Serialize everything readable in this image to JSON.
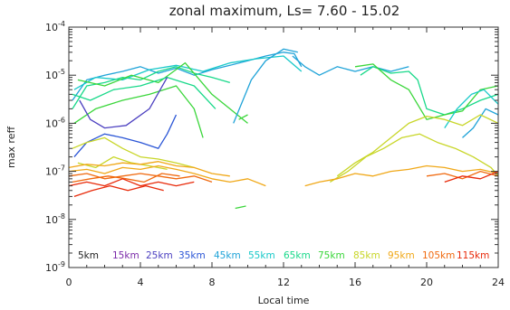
{
  "chart_data": {
    "type": "line",
    "title": "zonal maximum, Ls=  7.60 -  15.02",
    "xlabel": "Local time",
    "ylabel": "max reff",
    "xlim": [
      0,
      24
    ],
    "ylim": [
      1e-09,
      0.0001
    ],
    "yscale": "log",
    "grid": false,
    "legend_placement": "bottom-inside",
    "x_ticks": [
      0,
      4,
      8,
      12,
      16,
      20,
      24
    ],
    "x_tick_labels": [
      "0",
      "4",
      "8",
      "12",
      "16",
      "20",
      "24"
    ],
    "y_ticks": [
      1e-09,
      1e-08,
      1e-07,
      1e-06,
      1e-05,
      0.0001
    ],
    "y_tick_labels": [
      {
        "base": "10",
        "exp": "-9"
      },
      {
        "base": "10",
        "exp": "-8"
      },
      {
        "base": "10",
        "exp": "-7"
      },
      {
        "base": "10",
        "exp": "-6"
      },
      {
        "base": "10",
        "exp": "-5"
      },
      {
        "base": "10",
        "exp": "-4"
      }
    ],
    "legend": [
      {
        "label": "5km",
        "color": "#222222"
      },
      {
        "label": "15km",
        "color": "#7a2aa8"
      },
      {
        "label": "25km",
        "color": "#4b3fc0"
      },
      {
        "label": "35km",
        "color": "#2a55d6"
      },
      {
        "label": "45km",
        "color": "#1fa3d8"
      },
      {
        "label": "55km",
        "color": "#18c9c9"
      },
      {
        "label": "65km",
        "color": "#19d98a"
      },
      {
        "label": "75km",
        "color": "#3ad63a"
      },
      {
        "label": "85km",
        "color": "#c8d628"
      },
      {
        "label": "95km",
        "color": "#f0a818"
      },
      {
        "label": "105km",
        "color": "#f06a10"
      },
      {
        "label": "115km",
        "color": "#e82a0a"
      }
    ],
    "series": [
      {
        "color": "#1fa3d8",
        "points": [
          [
            0.2,
            3e-06
          ],
          [
            1,
            8e-06
          ],
          [
            2,
            1e-05
          ],
          [
            3,
            1.2e-05
          ],
          [
            4,
            1.5e-05
          ],
          [
            5,
            1.1e-05
          ],
          [
            6,
            1.4e-05
          ],
          [
            7,
            1e-05
          ],
          [
            8,
            1.3e-05
          ],
          [
            9,
            1.6e-05
          ],
          [
            10,
            2e-05
          ],
          [
            11,
            2.5e-05
          ],
          [
            12,
            3e-05
          ],
          [
            12.6,
            2.8e-05
          ],
          [
            13,
            1.5e-05
          ]
        ]
      },
      {
        "color": "#18c9c9",
        "points": [
          [
            0.3,
            5e-06
          ],
          [
            1.5,
            9e-06
          ],
          [
            3,
            8e-06
          ],
          [
            4.5,
            1.3e-05
          ],
          [
            6,
            1.6e-05
          ],
          [
            7.5,
            1.2e-05
          ],
          [
            9,
            1.8e-05
          ],
          [
            10.5,
            2.2e-05
          ],
          [
            12,
            2.5e-05
          ],
          [
            13,
            1.2e-05
          ]
        ]
      },
      {
        "color": "#19d98a",
        "points": [
          [
            0.2,
            2e-06
          ],
          [
            1,
            6e-06
          ],
          [
            2,
            7e-06
          ],
          [
            3,
            9e-06
          ],
          [
            4,
            8e-06
          ],
          [
            5,
            1.2e-05
          ],
          [
            6,
            1.5e-05
          ],
          [
            7,
            1.1e-05
          ],
          [
            8,
            9e-06
          ],
          [
            9,
            7e-06
          ]
        ]
      },
      {
        "color": "#3ad63a",
        "points": [
          [
            0.3,
            1e-06
          ],
          [
            1.5,
            2e-06
          ],
          [
            3,
            3e-06
          ],
          [
            4.5,
            4e-06
          ],
          [
            6,
            6e-06
          ],
          [
            7,
            2e-06
          ],
          [
            7.5,
            5e-07
          ]
        ]
      },
      {
        "color": "#3ad63a",
        "points": [
          [
            0.5,
            8e-06
          ],
          [
            2,
            6e-06
          ],
          [
            3.5,
            1e-05
          ],
          [
            5,
            7e-06
          ],
          [
            6.5,
            1.8e-05
          ],
          [
            8,
            4e-06
          ],
          [
            9,
            2e-06
          ],
          [
            10,
            1e-06
          ]
        ]
      },
      {
        "color": "#19d98a",
        "points": [
          [
            0.2,
            4e-06
          ],
          [
            1.2,
            3e-06
          ],
          [
            2.5,
            5e-06
          ],
          [
            4,
            6e-06
          ],
          [
            5.5,
            9e-06
          ],
          [
            7,
            6e-06
          ],
          [
            8.2,
            2e-06
          ]
        ]
      },
      {
        "color": "#2a55d6",
        "points": [
          [
            0.3,
            2e-07
          ],
          [
            1,
            4e-07
          ],
          [
            2,
            6e-07
          ],
          [
            3,
            5e-07
          ],
          [
            4,
            4e-07
          ],
          [
            5,
            3e-07
          ],
          [
            5.5,
            6e-07
          ],
          [
            6,
            1.5e-06
          ]
        ]
      },
      {
        "color": "#4b3fc0",
        "points": [
          [
            0.6,
            3e-06
          ],
          [
            1.2,
            1.2e-06
          ],
          [
            2,
            8e-07
          ],
          [
            3.2,
            9e-07
          ],
          [
            4.5,
            2e-06
          ],
          [
            5.5,
            9e-06
          ]
        ]
      },
      {
        "color": "#1fa3d8",
        "points": [
          [
            9.2,
            1e-06
          ],
          [
            10.2,
            8e-06
          ],
          [
            11,
            2e-05
          ],
          [
            12,
            3.5e-05
          ],
          [
            12.8,
            3e-05
          ]
        ]
      },
      {
        "color": "#1fa3d8",
        "points": [
          [
            12.5,
            2.5e-05
          ],
          [
            13.2,
            1.5e-05
          ],
          [
            14,
            1e-05
          ],
          [
            15,
            1.5e-05
          ],
          [
            16,
            1.2e-05
          ],
          [
            17,
            1.5e-05
          ],
          [
            18,
            1.2e-05
          ],
          [
            19,
            1.5e-05
          ]
        ]
      },
      {
        "color": "#3ad63a",
        "points": [
          [
            9.5,
            1.2e-06
          ],
          [
            10,
            1.5e-06
          ]
        ]
      },
      {
        "color": "#3ad63a",
        "points": [
          [
            9.3,
            1.7e-08
          ],
          [
            9.9,
            1.9e-08
          ]
        ]
      },
      {
        "color": "#19d98a",
        "points": [
          [
            16.3,
            1e-05
          ],
          [
            17,
            1.5e-05
          ],
          [
            18,
            1.1e-05
          ],
          [
            19,
            1.2e-05
          ],
          [
            19.5,
            8e-06
          ],
          [
            20,
            2e-06
          ],
          [
            21,
            1.5e-06
          ],
          [
            22,
            2e-06
          ],
          [
            23,
            3e-06
          ],
          [
            24,
            4e-06
          ]
        ]
      },
      {
        "color": "#3ad63a",
        "points": [
          [
            16,
            1.5e-05
          ],
          [
            17,
            1.7e-05
          ],
          [
            18,
            8e-06
          ],
          [
            19,
            5e-06
          ],
          [
            20,
            1.2e-06
          ],
          [
            21,
            1.5e-06
          ],
          [
            22,
            1.8e-06
          ],
          [
            23,
            5e-06
          ],
          [
            24,
            6e-06
          ]
        ]
      },
      {
        "color": "#18c9c9",
        "points": [
          [
            21,
            8e-07
          ],
          [
            21.7,
            2e-06
          ],
          [
            22.5,
            4e-06
          ],
          [
            23.2,
            5e-06
          ],
          [
            24,
            2.5e-06
          ]
        ]
      },
      {
        "color": "#1fa3d8",
        "points": [
          [
            22,
            5e-07
          ],
          [
            22.6,
            8e-07
          ],
          [
            23.3,
            2e-06
          ],
          [
            24,
            1.5e-06
          ]
        ]
      },
      {
        "color": "#c8d628",
        "points": [
          [
            0.2,
            3e-07
          ],
          [
            1,
            4e-07
          ],
          [
            2,
            5e-07
          ],
          [
            3,
            3e-07
          ],
          [
            4,
            2e-07
          ],
          [
            5,
            1.8e-07
          ],
          [
            6,
            1.5e-07
          ],
          [
            7,
            1.2e-07
          ]
        ]
      },
      {
        "color": "#c8d628",
        "points": [
          [
            0.5,
            1.5e-07
          ],
          [
            1.5,
            1.2e-07
          ],
          [
            2.5,
            2e-07
          ],
          [
            3.5,
            1.5e-07
          ],
          [
            4.5,
            1.3e-07
          ],
          [
            5.5,
            1.1e-07
          ]
        ]
      },
      {
        "color": "#c8d628",
        "points": [
          [
            15,
            8e-08
          ],
          [
            16,
            1.5e-07
          ],
          [
            17,
            2.5e-07
          ],
          [
            18,
            5e-07
          ],
          [
            19,
            1e-06
          ],
          [
            20,
            1.4e-06
          ],
          [
            21,
            1.2e-06
          ],
          [
            22,
            9e-07
          ],
          [
            23,
            1.5e-06
          ],
          [
            24,
            1e-06
          ]
        ]
      },
      {
        "color": "#c8d628",
        "points": [
          [
            14.6,
            6e-08
          ],
          [
            15.6,
            1e-07
          ],
          [
            16.6,
            2e-07
          ],
          [
            17.6,
            3e-07
          ],
          [
            18.6,
            5e-07
          ],
          [
            19.6,
            6e-07
          ],
          [
            20.6,
            4e-07
          ],
          [
            21.6,
            3e-07
          ],
          [
            22.6,
            2e-07
          ],
          [
            23.6,
            1.2e-07
          ],
          [
            24,
            8e-08
          ]
        ]
      },
      {
        "color": "#f0a818",
        "points": [
          [
            0,
            1e-07
          ],
          [
            1,
            1.1e-07
          ],
          [
            2,
            9e-08
          ],
          [
            3,
            1.2e-07
          ],
          [
            4,
            1.1e-07
          ],
          [
            5,
            1.3e-07
          ],
          [
            6,
            1.1e-07
          ],
          [
            7,
            9e-08
          ],
          [
            8,
            7e-08
          ],
          [
            9,
            6e-08
          ],
          [
            10,
            7e-08
          ],
          [
            11,
            5e-08
          ]
        ]
      },
      {
        "color": "#f0a818",
        "points": [
          [
            0,
            1.2e-07
          ],
          [
            1,
            1.4e-07
          ],
          [
            2,
            1.3e-07
          ],
          [
            3,
            1.5e-07
          ],
          [
            4,
            1.4e-07
          ],
          [
            5,
            1.6e-07
          ],
          [
            6,
            1.3e-07
          ],
          [
            7,
            1.2e-07
          ],
          [
            8,
            9e-08
          ],
          [
            9,
            8e-08
          ]
        ]
      },
      {
        "color": "#f0a818",
        "points": [
          [
            13.2,
            5e-08
          ],
          [
            14,
            6e-08
          ],
          [
            15,
            7e-08
          ],
          [
            16,
            9e-08
          ],
          [
            17,
            8e-08
          ],
          [
            18,
            1e-07
          ],
          [
            19,
            1.1e-07
          ],
          [
            20,
            1.3e-07
          ],
          [
            21,
            1.2e-07
          ],
          [
            22,
            1e-07
          ],
          [
            23,
            1.1e-07
          ],
          [
            24,
            9e-08
          ]
        ]
      },
      {
        "color": "#f06a10",
        "points": [
          [
            0,
            8e-08
          ],
          [
            1,
            9e-08
          ],
          [
            2,
            7e-08
          ],
          [
            3,
            8e-08
          ],
          [
            4,
            9e-08
          ],
          [
            5,
            8e-08
          ],
          [
            6,
            7e-08
          ],
          [
            7,
            8e-08
          ],
          [
            8,
            6e-08
          ]
        ]
      },
      {
        "color": "#f06a10",
        "points": [
          [
            0.2,
            6e-08
          ],
          [
            1.2,
            7e-08
          ],
          [
            2.2,
            8e-08
          ],
          [
            3.2,
            7e-08
          ],
          [
            4.2,
            6e-08
          ],
          [
            5.2,
            9e-08
          ],
          [
            6.2,
            8e-08
          ]
        ]
      },
      {
        "color": "#e82a0a",
        "points": [
          [
            0,
            5e-08
          ],
          [
            1,
            6e-08
          ],
          [
            2,
            5e-08
          ],
          [
            3,
            7e-08
          ],
          [
            4,
            5e-08
          ],
          [
            5,
            6e-08
          ],
          [
            6,
            5e-08
          ],
          [
            7,
            6e-08
          ]
        ]
      },
      {
        "color": "#e82a0a",
        "points": [
          [
            0.3,
            3e-08
          ],
          [
            1.3,
            4e-08
          ],
          [
            2.3,
            5e-08
          ],
          [
            3.3,
            4e-08
          ],
          [
            4.3,
            5e-08
          ],
          [
            5.3,
            4e-08
          ]
        ]
      },
      {
        "color": "#f06a10",
        "points": [
          [
            20,
            8e-08
          ],
          [
            21,
            9e-08
          ],
          [
            22,
            7e-08
          ],
          [
            23,
            1e-07
          ],
          [
            24,
            8e-08
          ]
        ]
      },
      {
        "color": "#e82a0a",
        "points": [
          [
            21,
            6e-08
          ],
          [
            22,
            8e-08
          ],
          [
            23,
            7e-08
          ],
          [
            24,
            1e-07
          ]
        ]
      }
    ]
  }
}
